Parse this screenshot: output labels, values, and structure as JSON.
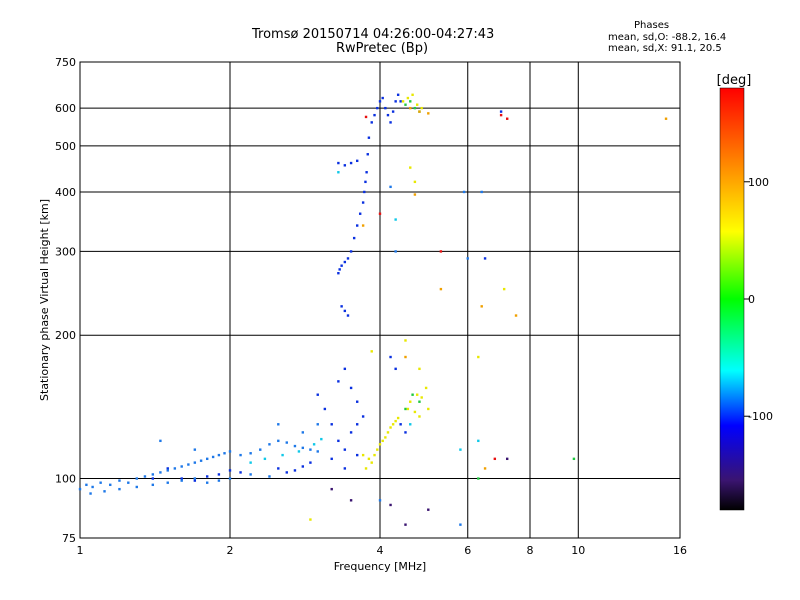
{
  "chart_data": {
    "type": "scatter",
    "title": "Tromsø 20150714 04:26:00-04:27:43",
    "subtitle": "RwPretec (Bp)",
    "xlabel": "Frequency [MHz]",
    "ylabel": "Stationary phase Virtual Height [km]",
    "x_scale": "log",
    "y_scale": "log",
    "xlim": [
      1,
      16
    ],
    "ylim": [
      75,
      750
    ],
    "x_ticks": [
      1,
      2,
      4,
      6,
      8,
      10,
      16
    ],
    "x_tick_labels": [
      "1",
      "2",
      "4",
      "6",
      "8",
      "10",
      "16"
    ],
    "y_ticks": [
      75,
      100,
      200,
      300,
      400,
      500,
      600,
      750
    ],
    "y_tick_labels": [
      "75",
      "100",
      "200",
      "300",
      "400",
      "500",
      "600",
      "750"
    ],
    "grid": true,
    "phase_info": {
      "heading": "Phases",
      "line_o": "mean, sd,O: -88.2, 16.4",
      "line_x": "mean, sd,X:  91.1, 20.5"
    },
    "colorbar": {
      "label": "[deg]",
      "range": [
        -180,
        180
      ],
      "ticks": [
        100,
        0,
        -100
      ],
      "tick_labels": [
        "100",
        "0",
        "-100"
      ]
    },
    "series": [
      {
        "phase": -120,
        "color": "#0a30e0",
        "points": [
          [
            3.3,
            270
          ],
          [
            3.32,
            275
          ],
          [
            3.35,
            280
          ],
          [
            3.4,
            285
          ],
          [
            3.45,
            290
          ],
          [
            3.5,
            300
          ],
          [
            3.55,
            320
          ],
          [
            3.6,
            340
          ],
          [
            3.65,
            360
          ],
          [
            3.7,
            380
          ],
          [
            3.72,
            400
          ],
          [
            3.74,
            420
          ],
          [
            3.76,
            440
          ],
          [
            3.78,
            480
          ],
          [
            3.8,
            520
          ],
          [
            3.85,
            560
          ],
          [
            3.9,
            580
          ],
          [
            3.95,
            600
          ],
          [
            4.0,
            620
          ],
          [
            4.05,
            630
          ],
          [
            4.1,
            600
          ],
          [
            4.15,
            580
          ],
          [
            4.2,
            560
          ],
          [
            4.25,
            590
          ],
          [
            4.3,
            620
          ],
          [
            4.35,
            640
          ],
          [
            4.4,
            620
          ],
          [
            3.3,
            460
          ],
          [
            3.4,
            455
          ],
          [
            3.5,
            460
          ],
          [
            3.6,
            465
          ],
          [
            3.35,
            230
          ],
          [
            3.4,
            225
          ],
          [
            3.45,
            220
          ],
          [
            3.0,
            150
          ],
          [
            3.1,
            140
          ],
          [
            3.2,
            130
          ],
          [
            3.3,
            160
          ],
          [
            3.4,
            170
          ],
          [
            3.5,
            155
          ],
          [
            3.6,
            145
          ],
          [
            3.7,
            135
          ],
          [
            3.3,
            120
          ],
          [
            3.4,
            115
          ],
          [
            3.5,
            125
          ],
          [
            3.6,
            130
          ],
          [
            3.2,
            110
          ],
          [
            3.4,
            105
          ],
          [
            3.6,
            112
          ],
          [
            2.5,
            105
          ],
          [
            2.6,
            103
          ],
          [
            2.7,
            104
          ],
          [
            2.8,
            106
          ],
          [
            2.9,
            108
          ],
          [
            1.6,
            100
          ],
          [
            1.7,
            99
          ],
          [
            1.8,
            101
          ],
          [
            1.9,
            102
          ],
          [
            2.0,
            104
          ],
          [
            2.1,
            103
          ],
          [
            1.5,
            105
          ],
          [
            1.4,
            100
          ],
          [
            4.2,
            180
          ],
          [
            4.3,
            170
          ],
          [
            4.4,
            130
          ],
          [
            4.5,
            125
          ],
          [
            6.5,
            290
          ],
          [
            7.0,
            590
          ]
        ]
      },
      {
        "phase": -105,
        "color": "#1e78e8",
        "points": [
          [
            1.0,
            95
          ],
          [
            1.03,
            97
          ],
          [
            1.06,
            96
          ],
          [
            1.1,
            98
          ],
          [
            1.15,
            97
          ],
          [
            1.2,
            99
          ],
          [
            1.25,
            98
          ],
          [
            1.3,
            100
          ],
          [
            1.35,
            101
          ],
          [
            1.4,
            102
          ],
          [
            1.45,
            103
          ],
          [
            1.5,
            104
          ],
          [
            1.55,
            105
          ],
          [
            1.6,
            106
          ],
          [
            1.65,
            107
          ],
          [
            1.7,
            108
          ],
          [
            1.75,
            109
          ],
          [
            1.8,
            110
          ],
          [
            1.85,
            111
          ],
          [
            1.9,
            112
          ],
          [
            1.95,
            113
          ],
          [
            2.0,
            114
          ],
          [
            2.1,
            112
          ],
          [
            2.2,
            113
          ],
          [
            2.3,
            115
          ],
          [
            2.4,
            118
          ],
          [
            2.5,
            120
          ],
          [
            2.6,
            119
          ],
          [
            2.7,
            117
          ],
          [
            2.8,
            116
          ],
          [
            2.9,
            115
          ],
          [
            3.0,
            114
          ],
          [
            1.05,
            93
          ],
          [
            1.12,
            94
          ],
          [
            1.2,
            95
          ],
          [
            1.3,
            96
          ],
          [
            1.4,
            97
          ],
          [
            1.5,
            98
          ],
          [
            1.6,
            99
          ],
          [
            1.7,
            100
          ],
          [
            1.8,
            98
          ],
          [
            1.9,
            99
          ],
          [
            2.0,
            100
          ],
          [
            2.2,
            102
          ],
          [
            2.4,
            101
          ],
          [
            1.45,
            120
          ],
          [
            1.7,
            115
          ],
          [
            2.5,
            130
          ],
          [
            2.8,
            125
          ],
          [
            3.0,
            130
          ],
          [
            5.9,
            400
          ],
          [
            6.4,
            400
          ],
          [
            4.2,
            410
          ],
          [
            4.3,
            300
          ],
          [
            6.0,
            290
          ],
          [
            5.8,
            80
          ],
          [
            4.0,
            90
          ]
        ]
      },
      {
        "phase": -70,
        "color": "#10c8e8",
        "points": [
          [
            2.2,
            108
          ],
          [
            2.35,
            110
          ],
          [
            2.55,
            112
          ],
          [
            2.75,
            114
          ],
          [
            2.95,
            118
          ],
          [
            3.05,
            121
          ],
          [
            5.8,
            115
          ],
          [
            6.3,
            120
          ],
          [
            4.3,
            350
          ],
          [
            4.6,
            130
          ],
          [
            3.3,
            440
          ]
        ]
      },
      {
        "phase": 20,
        "color": "#20c840",
        "points": [
          [
            4.5,
            610
          ],
          [
            4.6,
            620
          ],
          [
            4.7,
            600
          ],
          [
            4.8,
            590
          ],
          [
            4.65,
            150
          ],
          [
            4.8,
            145
          ],
          [
            4.5,
            140
          ],
          [
            6.3,
            100
          ],
          [
            9.8,
            110
          ]
        ]
      },
      {
        "phase": 100,
        "color": "#e8e800",
        "points": [
          [
            3.75,
            105
          ],
          [
            3.8,
            110
          ],
          [
            3.85,
            108
          ],
          [
            3.9,
            112
          ],
          [
            3.95,
            115
          ],
          [
            4.0,
            118
          ],
          [
            4.05,
            120
          ],
          [
            4.1,
            122
          ],
          [
            4.15,
            125
          ],
          [
            4.2,
            128
          ],
          [
            4.25,
            130
          ],
          [
            4.3,
            132
          ],
          [
            4.35,
            134
          ],
          [
            3.7,
            112
          ],
          [
            4.45,
            620
          ],
          [
            4.55,
            630
          ],
          [
            4.65,
            640
          ],
          [
            4.75,
            610
          ],
          [
            4.85,
            600
          ],
          [
            4.6,
            450
          ],
          [
            4.7,
            420
          ],
          [
            4.6,
            145
          ],
          [
            4.75,
            150
          ],
          [
            4.85,
            148
          ],
          [
            4.95,
            155
          ],
          [
            4.55,
            140
          ],
          [
            4.7,
            138
          ],
          [
            4.8,
            135
          ],
          [
            5.0,
            140
          ],
          [
            3.85,
            185
          ],
          [
            4.5,
            195
          ],
          [
            4.8,
            170
          ],
          [
            6.3,
            180
          ],
          [
            7.1,
            250
          ],
          [
            2.9,
            82
          ]
        ]
      },
      {
        "phase": 140,
        "color": "#f0a000",
        "points": [
          [
            4.6,
            600
          ],
          [
            4.8,
            590
          ],
          [
            5.0,
            585
          ],
          [
            4.7,
            395
          ],
          [
            5.3,
            250
          ],
          [
            6.4,
            230
          ],
          [
            7.5,
            220
          ],
          [
            3.7,
            340
          ],
          [
            4.5,
            180
          ],
          [
            6.5,
            105
          ],
          [
            15.0,
            570
          ]
        ]
      },
      {
        "phase": 175,
        "color": "#e81010",
        "points": [
          [
            3.75,
            575
          ],
          [
            7.2,
            570
          ],
          [
            5.3,
            300
          ],
          [
            7.0,
            580
          ],
          [
            4.0,
            360
          ],
          [
            6.8,
            110
          ]
        ]
      },
      {
        "phase": -165,
        "color": "#3a1470",
        "points": [
          [
            3.2,
            95
          ],
          [
            3.5,
            90
          ],
          [
            4.2,
            88
          ],
          [
            5.0,
            86
          ],
          [
            7.2,
            110
          ],
          [
            4.5,
            80
          ]
        ]
      }
    ]
  }
}
